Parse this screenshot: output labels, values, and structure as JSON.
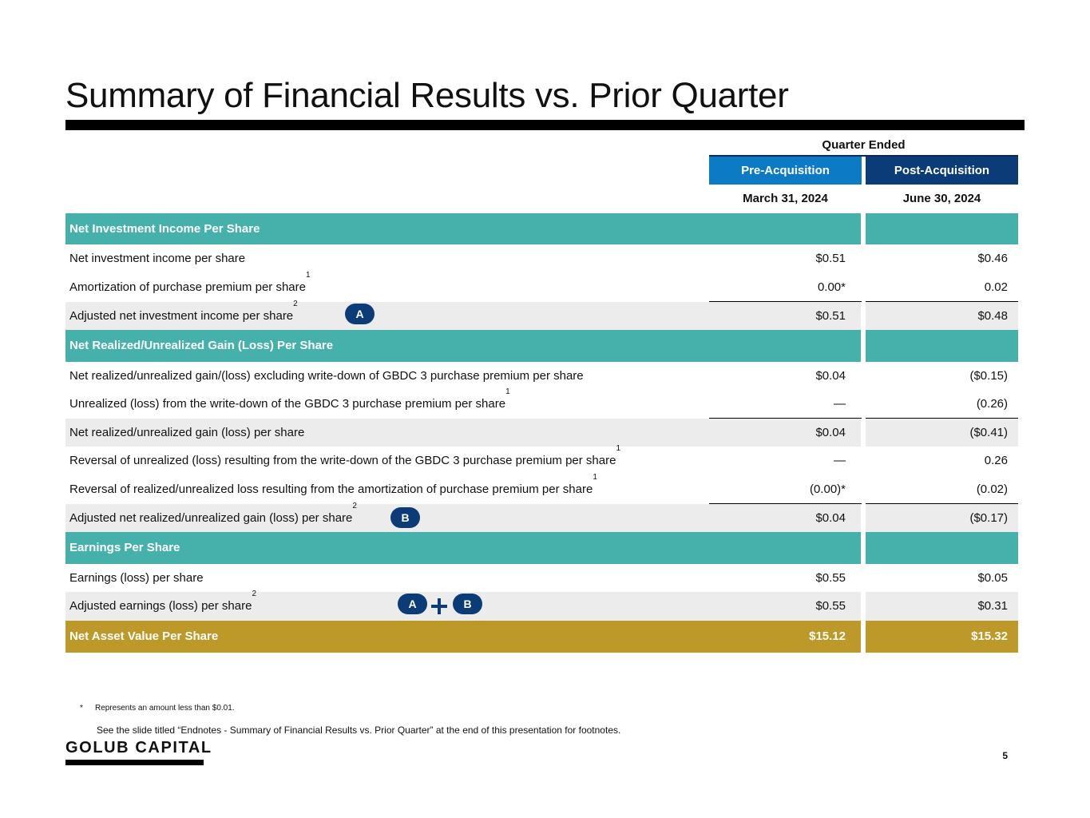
{
  "title": "Summary of Financial Results vs. Prior Quarter",
  "header": {
    "quarter_ended": "Quarter Ended",
    "pre_label": "Pre-Acquisition",
    "post_label": "Post-Acquisition",
    "pre_date": "March 31, 2024",
    "post_date": "June 30, 2024",
    "pre_color": "#0c7ac4",
    "post_color": "#0b3c78"
  },
  "rows": [
    {
      "type": "section",
      "label": "Net Investment Income Per Share"
    },
    {
      "type": "plain",
      "label": "Net investment income per share",
      "pre": "$0.51",
      "post": "$0.46"
    },
    {
      "type": "plain",
      "label": "Amortization of purchase premium per share",
      "sup": "1",
      "pre": "0.00*",
      "post": "0.02"
    },
    {
      "type": "shaded",
      "label": "Adjusted net investment income per share",
      "sup": "2",
      "pre": "$0.51",
      "post": "$0.48"
    },
    {
      "type": "section",
      "label": "Net Realized/Unrealized Gain (Loss) Per Share"
    },
    {
      "type": "plain",
      "label": "Net realized/unrealized gain/(loss) excluding write-down of GBDC 3 purchase premium per share",
      "pre": "$0.04",
      "post": "($0.15)"
    },
    {
      "type": "plain",
      "label": "Unrealized (loss) from the write-down of the GBDC 3 purchase premium per share",
      "sup": "1",
      "pre": "—",
      "post": "(0.26)"
    },
    {
      "type": "shaded",
      "label": "Net realized/unrealized gain (loss) per share",
      "pre": "$0.04",
      "post": "($0.41)"
    },
    {
      "type": "plain",
      "label": "Reversal of unrealized (loss) resulting from the write-down of the GBDC 3 purchase premium per share",
      "sup": "1",
      "pre": "—",
      "post": "0.26"
    },
    {
      "type": "plain",
      "label": "Reversal of realized/unrealized loss resulting from the amortization of purchase premium per share",
      "sup": "1",
      "pre": "(0.00)*",
      "post": "(0.02)"
    },
    {
      "type": "shaded",
      "label": "Adjusted net realized/unrealized gain (loss) per share",
      "sup": "2",
      "pre": "$0.04",
      "post": "($0.17)"
    },
    {
      "type": "section",
      "label": "Earnings Per Share"
    },
    {
      "type": "plain",
      "label": "Earnings (loss) per share",
      "pre": "$0.55",
      "post": "$0.05"
    },
    {
      "type": "shaded",
      "label": "Adjusted earnings (loss) per share",
      "sup": "2",
      "pre": "$0.55",
      "post": "$0.31"
    },
    {
      "type": "nav",
      "label": "Net Asset Value Per Share",
      "pre": "$15.12",
      "post": "$15.32"
    }
  ],
  "badges": {
    "a": "A",
    "b": "B",
    "plus_icon": "plus-icon"
  },
  "colors": {
    "section": "#46b1ab",
    "shaded": "#ececec",
    "nav": "#bd992a",
    "badge": "#0b3c78"
  },
  "footnotes": {
    "star_mark": "*",
    "star_text": "Represents an amount less than $0.01.",
    "see_text": "See the slide titled “Endnotes - Summary of Financial Results vs. Prior Quarter” at the end of this presentation for footnotes."
  },
  "logo": "GOLUB CAPITAL",
  "page_number": "5"
}
